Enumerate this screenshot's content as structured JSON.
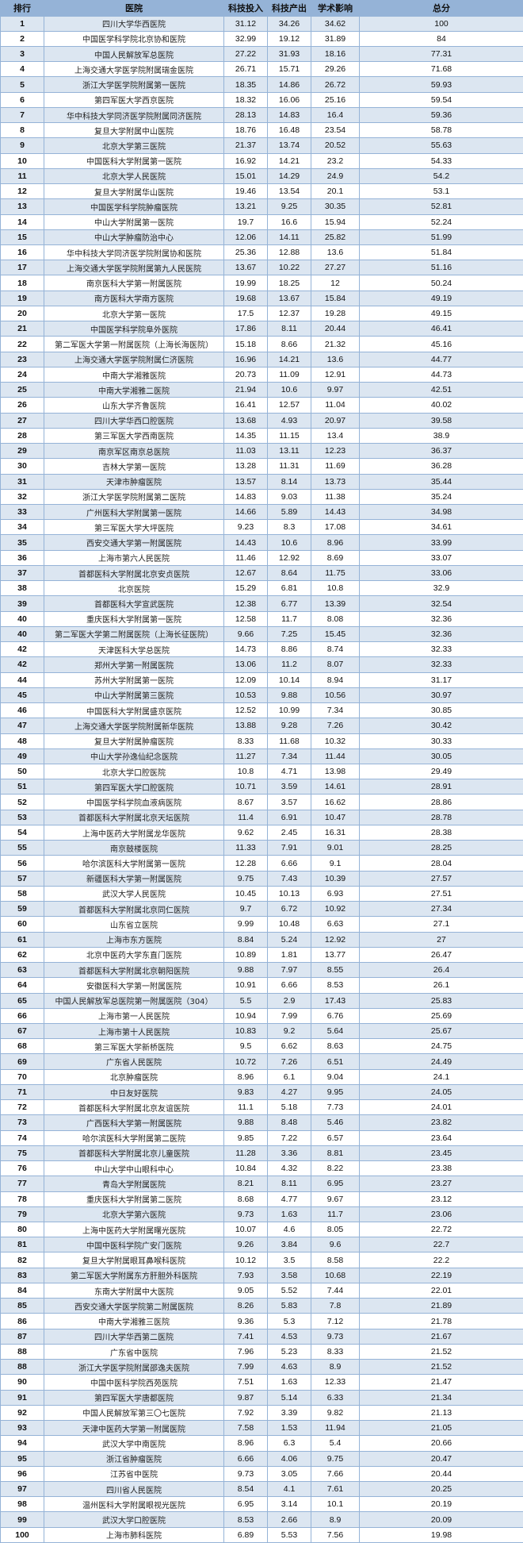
{
  "colors": {
    "header_bg": "#95b3d7",
    "odd_row_bg": "#dce6f1",
    "even_row_bg": "#ffffff",
    "border": "#95b3d7"
  },
  "headers": [
    "排行",
    "医院",
    "科技投入",
    "科技产出",
    "学术影响",
    "总分"
  ],
  "rows": [
    [
      "1",
      "四川大学华西医院",
      "31.12",
      "34.26",
      "34.62",
      "100"
    ],
    [
      "2",
      "中国医学科学院北京协和医院",
      "32.99",
      "19.12",
      "31.89",
      "84"
    ],
    [
      "3",
      "中国人民解放军总医院",
      "27.22",
      "31.93",
      "18.16",
      "77.31"
    ],
    [
      "4",
      "上海交通大学医学院附属瑞金医院",
      "26.71",
      "15.71",
      "29.26",
      "71.68"
    ],
    [
      "5",
      "浙江大学医学院附属第一医院",
      "18.35",
      "14.86",
      "26.72",
      "59.93"
    ],
    [
      "6",
      "第四军医大学西京医院",
      "18.32",
      "16.06",
      "25.16",
      "59.54"
    ],
    [
      "7",
      "华中科技大学同济医学院附属同济医院",
      "28.13",
      "14.83",
      "16.4",
      "59.36"
    ],
    [
      "8",
      "复旦大学附属中山医院",
      "18.76",
      "16.48",
      "23.54",
      "58.78"
    ],
    [
      "9",
      "北京大学第三医院",
      "21.37",
      "13.74",
      "20.52",
      "55.63"
    ],
    [
      "10",
      "中国医科大学附属第一医院",
      "16.92",
      "14.21",
      "23.2",
      "54.33"
    ],
    [
      "11",
      "北京大学人民医院",
      "15.01",
      "14.29",
      "24.9",
      "54.2"
    ],
    [
      "12",
      "复旦大学附属华山医院",
      "19.46",
      "13.54",
      "20.1",
      "53.1"
    ],
    [
      "13",
      "中国医学科学院肿瘤医院",
      "13.21",
      "9.25",
      "30.35",
      "52.81"
    ],
    [
      "14",
      "中山大学附属第一医院",
      "19.7",
      "16.6",
      "15.94",
      "52.24"
    ],
    [
      "15",
      "中山大学肿瘤防治中心",
      "12.06",
      "14.11",
      "25.82",
      "51.99"
    ],
    [
      "16",
      "华中科技大学同济医学院附属协和医院",
      "25.36",
      "12.88",
      "13.6",
      "51.84"
    ],
    [
      "17",
      "上海交通大学医学院附属第九人民医院",
      "13.67",
      "10.22",
      "27.27",
      "51.16"
    ],
    [
      "18",
      "南京医科大学第一附属医院",
      "19.99",
      "18.25",
      "12",
      "50.24"
    ],
    [
      "19",
      "南方医科大学南方医院",
      "19.68",
      "13.67",
      "15.84",
      "49.19"
    ],
    [
      "20",
      "北京大学第一医院",
      "17.5",
      "12.37",
      "19.28",
      "49.15"
    ],
    [
      "21",
      "中国医学科学院阜外医院",
      "17.86",
      "8.11",
      "20.44",
      "46.41"
    ],
    [
      "22",
      "第二军医大学第一附属医院（上海长海医院）",
      "15.18",
      "8.66",
      "21.32",
      "45.16"
    ],
    [
      "23",
      "上海交通大学医学院附属仁济医院",
      "16.96",
      "14.21",
      "13.6",
      "44.77"
    ],
    [
      "24",
      "中南大学湘雅医院",
      "20.73",
      "11.09",
      "12.91",
      "44.73"
    ],
    [
      "25",
      "中南大学湘雅二医院",
      "21.94",
      "10.6",
      "9.97",
      "42.51"
    ],
    [
      "26",
      "山东大学齐鲁医院",
      "16.41",
      "12.57",
      "11.04",
      "40.02"
    ],
    [
      "27",
      "四川大学华西口腔医院",
      "13.68",
      "4.93",
      "20.97",
      "39.58"
    ],
    [
      "28",
      "第三军医大学西南医院",
      "14.35",
      "11.15",
      "13.4",
      "38.9"
    ],
    [
      "29",
      "南京军区南京总医院",
      "11.03",
      "13.11",
      "12.23",
      "36.37"
    ],
    [
      "30",
      "吉林大学第一医院",
      "13.28",
      "11.31",
      "11.69",
      "36.28"
    ],
    [
      "31",
      "天津市肿瘤医院",
      "13.57",
      "8.14",
      "13.73",
      "35.44"
    ],
    [
      "32",
      "浙江大学医学院附属第二医院",
      "14.83",
      "9.03",
      "11.38",
      "35.24"
    ],
    [
      "33",
      "广州医科大学附属第一医院",
      "14.66",
      "5.89",
      "14.43",
      "34.98"
    ],
    [
      "34",
      "第三军医大学大坪医院",
      "9.23",
      "8.3",
      "17.08",
      "34.61"
    ],
    [
      "35",
      "西安交通大学第一附属医院",
      "14.43",
      "10.6",
      "8.96",
      "33.99"
    ],
    [
      "36",
      "上海市第六人民医院",
      "11.46",
      "12.92",
      "8.69",
      "33.07"
    ],
    [
      "37",
      "首都医科大学附属北京安贞医院",
      "12.67",
      "8.64",
      "11.75",
      "33.06"
    ],
    [
      "38",
      "北京医院",
      "15.29",
      "6.81",
      "10.8",
      "32.9"
    ],
    [
      "39",
      "首都医科大学宣武医院",
      "12.38",
      "6.77",
      "13.39",
      "32.54"
    ],
    [
      "40",
      "重庆医科大学附属第一医院",
      "12.58",
      "11.7",
      "8.08",
      "32.36"
    ],
    [
      "40",
      "第二军医大学第二附属医院（上海长征医院）",
      "9.66",
      "7.25",
      "15.45",
      "32.36"
    ],
    [
      "42",
      "天津医科大学总医院",
      "14.73",
      "8.86",
      "8.74",
      "32.33"
    ],
    [
      "42",
      "郑州大学第一附属医院",
      "13.06",
      "11.2",
      "8.07",
      "32.33"
    ],
    [
      "44",
      "苏州大学附属第一医院",
      "12.09",
      "10.14",
      "8.94",
      "31.17"
    ],
    [
      "45",
      "中山大学附属第三医院",
      "10.53",
      "9.88",
      "10.56",
      "30.97"
    ],
    [
      "46",
      "中国医科大学附属盛京医院",
      "12.52",
      "10.99",
      "7.34",
      "30.85"
    ],
    [
      "47",
      "上海交通大学医学院附属新华医院",
      "13.88",
      "9.28",
      "7.26",
      "30.42"
    ],
    [
      "48",
      "复旦大学附属肿瘤医院",
      "8.33",
      "11.68",
      "10.32",
      "30.33"
    ],
    [
      "49",
      "中山大学孙逸仙纪念医院",
      "11.27",
      "7.34",
      "11.44",
      "30.05"
    ],
    [
      "50",
      "北京大学口腔医院",
      "10.8",
      "4.71",
      "13.98",
      "29.49"
    ],
    [
      "51",
      "第四军医大学口腔医院",
      "10.71",
      "3.59",
      "14.61",
      "28.91"
    ],
    [
      "52",
      "中国医学科学院血液病医院",
      "8.67",
      "3.57",
      "16.62",
      "28.86"
    ],
    [
      "53",
      "首都医科大学附属北京天坛医院",
      "11.4",
      "6.91",
      "10.47",
      "28.78"
    ],
    [
      "54",
      "上海中医药大学附属龙华医院",
      "9.62",
      "2.45",
      "16.31",
      "28.38"
    ],
    [
      "55",
      "南京鼓楼医院",
      "11.33",
      "7.91",
      "9.01",
      "28.25"
    ],
    [
      "56",
      "哈尔滨医科大学附属第一医院",
      "12.28",
      "6.66",
      "9.1",
      "28.04"
    ],
    [
      "57",
      "新疆医科大学第一附属医院",
      "9.75",
      "7.43",
      "10.39",
      "27.57"
    ],
    [
      "58",
      "武汉大学人民医院",
      "10.45",
      "10.13",
      "6.93",
      "27.51"
    ],
    [
      "59",
      "首都医科大学附属北京同仁医院",
      "9.7",
      "6.72",
      "10.92",
      "27.34"
    ],
    [
      "60",
      "山东省立医院",
      "9.99",
      "10.48",
      "6.63",
      "27.1"
    ],
    [
      "61",
      "上海市东方医院",
      "8.84",
      "5.24",
      "12.92",
      "27"
    ],
    [
      "62",
      "北京中医药大学东直门医院",
      "10.89",
      "1.81",
      "13.77",
      "26.47"
    ],
    [
      "63",
      "首都医科大学附属北京朝阳医院",
      "9.88",
      "7.97",
      "8.55",
      "26.4"
    ],
    [
      "64",
      "安徽医科大学第一附属医院",
      "10.91",
      "6.66",
      "8.53",
      "26.1"
    ],
    [
      "65",
      "中国人民解放军总医院第一附属医院（304）",
      "5.5",
      "2.9",
      "17.43",
      "25.83"
    ],
    [
      "66",
      "上海市第一人民医院",
      "10.94",
      "7.99",
      "6.76",
      "25.69"
    ],
    [
      "67",
      "上海市第十人民医院",
      "10.83",
      "9.2",
      "5.64",
      "25.67"
    ],
    [
      "68",
      "第三军医大学新桥医院",
      "9.5",
      "6.62",
      "8.63",
      "24.75"
    ],
    [
      "69",
      "广东省人民医院",
      "10.72",
      "7.26",
      "6.51",
      "24.49"
    ],
    [
      "70",
      "北京肿瘤医院",
      "8.96",
      "6.1",
      "9.04",
      "24.1"
    ],
    [
      "71",
      "中日友好医院",
      "9.83",
      "4.27",
      "9.95",
      "24.05"
    ],
    [
      "72",
      "首都医科大学附属北京友谊医院",
      "11.1",
      "5.18",
      "7.73",
      "24.01"
    ],
    [
      "73",
      "广西医科大学第一附属医院",
      "9.88",
      "8.48",
      "5.46",
      "23.82"
    ],
    [
      "74",
      "哈尔滨医科大学附属第二医院",
      "9.85",
      "7.22",
      "6.57",
      "23.64"
    ],
    [
      "75",
      "首都医科大学附属北京儿童医院",
      "11.28",
      "3.36",
      "8.81",
      "23.45"
    ],
    [
      "76",
      "中山大学中山眼科中心",
      "10.84",
      "4.32",
      "8.22",
      "23.38"
    ],
    [
      "77",
      "青岛大学附属医院",
      "8.21",
      "8.11",
      "6.95",
      "23.27"
    ],
    [
      "78",
      "重庆医科大学附属第二医院",
      "8.68",
      "4.77",
      "9.67",
      "23.12"
    ],
    [
      "79",
      "北京大学第六医院",
      "9.73",
      "1.63",
      "11.7",
      "23.06"
    ],
    [
      "80",
      "上海中医药大学附属曙光医院",
      "10.07",
      "4.6",
      "8.05",
      "22.72"
    ],
    [
      "81",
      "中国中医科学院广安门医院",
      "9.26",
      "3.84",
      "9.6",
      "22.7"
    ],
    [
      "82",
      "复旦大学附属眼耳鼻喉科医院",
      "10.12",
      "3.5",
      "8.58",
      "22.2"
    ],
    [
      "83",
      "第二军医大学附属东方肝胆外科医院",
      "7.93",
      "3.58",
      "10.68",
      "22.19"
    ],
    [
      "84",
      "东南大学附属中大医院",
      "9.05",
      "5.52",
      "7.44",
      "22.01"
    ],
    [
      "85",
      "西安交通大学医学院第二附属医院",
      "8.26",
      "5.83",
      "7.8",
      "21.89"
    ],
    [
      "86",
      "中南大学湘雅三医院",
      "9.36",
      "5.3",
      "7.12",
      "21.78"
    ],
    [
      "87",
      "四川大学华西第二医院",
      "7.41",
      "4.53",
      "9.73",
      "21.67"
    ],
    [
      "88",
      "广东省中医院",
      "7.96",
      "5.23",
      "8.33",
      "21.52"
    ],
    [
      "88",
      "浙江大学医学院附属邵逸夫医院",
      "7.99",
      "4.63",
      "8.9",
      "21.52"
    ],
    [
      "90",
      "中国中医科学院西苑医院",
      "7.51",
      "1.63",
      "12.33",
      "21.47"
    ],
    [
      "91",
      "第四军医大学唐都医院",
      "9.87",
      "5.14",
      "6.33",
      "21.34"
    ],
    [
      "92",
      "中国人民解放军第三〇七医院",
      "7.92",
      "3.39",
      "9.82",
      "21.13"
    ],
    [
      "93",
      "天津中医药大学第一附属医院",
      "7.58",
      "1.53",
      "11.94",
      "21.05"
    ],
    [
      "94",
      "武汉大学中南医院",
      "8.96",
      "6.3",
      "5.4",
      "20.66"
    ],
    [
      "95",
      "浙江省肿瘤医院",
      "6.66",
      "4.06",
      "9.75",
      "20.47"
    ],
    [
      "96",
      "江苏省中医院",
      "9.73",
      "3.05",
      "7.66",
      "20.44"
    ],
    [
      "97",
      "四川省人民医院",
      "8.54",
      "4.1",
      "7.61",
      "20.25"
    ],
    [
      "98",
      "温州医科大学附属眼视光医院",
      "6.95",
      "3.14",
      "10.1",
      "20.19"
    ],
    [
      "99",
      "武汉大学口腔医院",
      "8.53",
      "2.66",
      "8.9",
      "20.09"
    ],
    [
      "100",
      "上海市肺科医院",
      "6.89",
      "5.53",
      "7.56",
      "19.98"
    ]
  ]
}
